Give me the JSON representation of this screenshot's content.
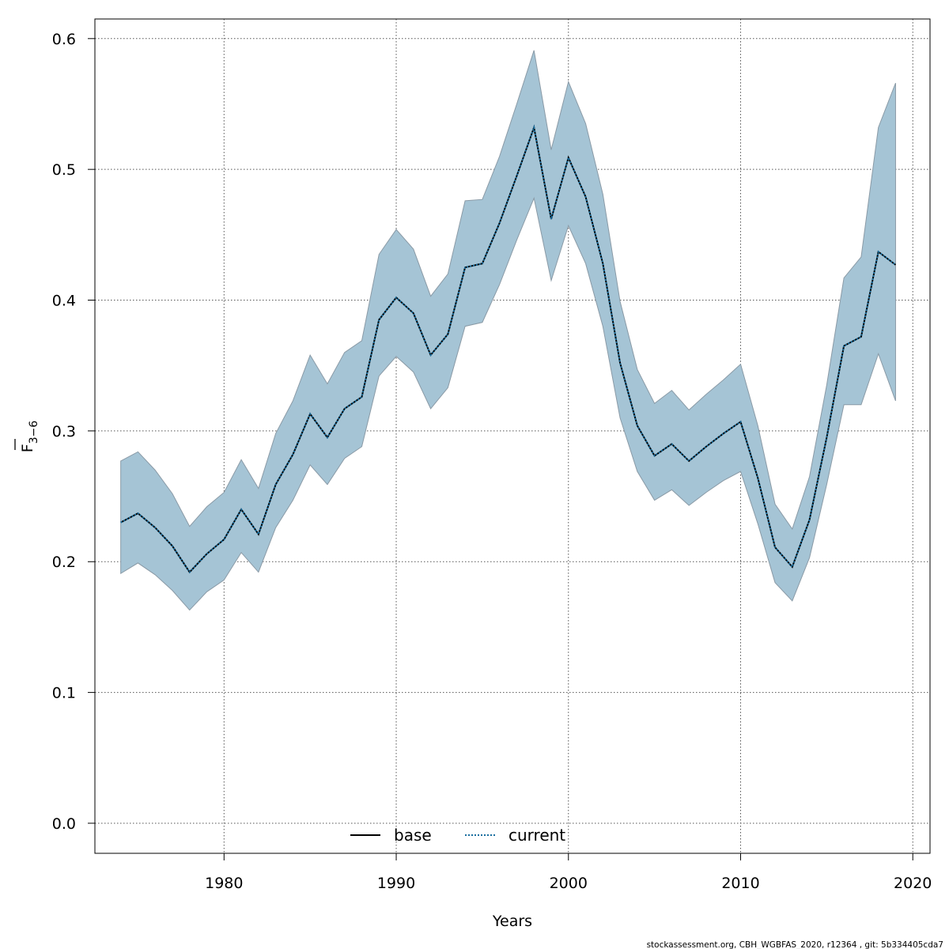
{
  "chart_data": {
    "type": "line",
    "xlabel": "Years",
    "ylabel_main": "F",
    "ylabel_sub": "3−6",
    "xlim": [
      1972.5,
      2021
    ],
    "ylim": [
      -0.023,
      0.615
    ],
    "xticks": [
      1980,
      1990,
      2000,
      2010,
      2020
    ],
    "yticks": [
      0.0,
      0.1,
      0.2,
      0.3,
      0.4,
      0.5,
      0.6
    ],
    "ytick_labels": [
      "0.0",
      "0.1",
      "0.2",
      "0.3",
      "0.4",
      "0.5",
      "0.6"
    ],
    "grid": true,
    "legend_position": "bottom-center",
    "x": [
      1974,
      1975,
      1976,
      1977,
      1978,
      1979,
      1980,
      1981,
      1982,
      1983,
      1984,
      1985,
      1986,
      1987,
      1988,
      1989,
      1990,
      1991,
      1992,
      1993,
      1994,
      1995,
      1996,
      1997,
      1998,
      1999,
      2000,
      2001,
      2002,
      2003,
      2004,
      2005,
      2006,
      2007,
      2008,
      2009,
      2010,
      2011,
      2012,
      2013,
      2014,
      2015,
      2016,
      2017,
      2018,
      2019
    ],
    "band": {
      "color": "#a5c4d5",
      "edge_color": "#8a9aa6",
      "lower": [
        0.191,
        0.199,
        0.19,
        0.178,
        0.163,
        0.177,
        0.186,
        0.207,
        0.192,
        0.226,
        0.247,
        0.274,
        0.259,
        0.279,
        0.288,
        0.342,
        0.357,
        0.345,
        0.317,
        0.333,
        0.38,
        0.383,
        0.412,
        0.446,
        0.478,
        0.415,
        0.457,
        0.428,
        0.38,
        0.31,
        0.269,
        0.247,
        0.255,
        0.243,
        0.253,
        0.262,
        0.269,
        0.229,
        0.184,
        0.17,
        0.203,
        0.259,
        0.32,
        0.32,
        0.359,
        0.323
      ],
      "upper": [
        0.277,
        0.284,
        0.27,
        0.252,
        0.227,
        0.242,
        0.253,
        0.278,
        0.256,
        0.298,
        0.323,
        0.358,
        0.336,
        0.36,
        0.369,
        0.435,
        0.454,
        0.439,
        0.403,
        0.42,
        0.476,
        0.477,
        0.51,
        0.55,
        0.591,
        0.515,
        0.567,
        0.535,
        0.481,
        0.399,
        0.347,
        0.321,
        0.331,
        0.316,
        0.328,
        0.339,
        0.351,
        0.304,
        0.244,
        0.225,
        0.265,
        0.335,
        0.417,
        0.433,
        0.532,
        0.566
      ]
    },
    "series": [
      {
        "name": "base",
        "color": "#000000",
        "dash": "solid",
        "values": [
          0.23,
          0.237,
          0.226,
          0.212,
          0.192,
          0.206,
          0.217,
          0.24,
          0.221,
          0.259,
          0.282,
          0.313,
          0.295,
          0.317,
          0.326,
          0.385,
          0.402,
          0.39,
          0.358,
          0.374,
          0.425,
          0.428,
          0.459,
          0.495,
          0.532,
          0.462,
          0.509,
          0.479,
          0.428,
          0.352,
          0.304,
          0.281,
          0.29,
          0.277,
          0.288,
          0.298,
          0.307,
          0.264,
          0.211,
          0.196,
          0.232,
          0.295,
          0.365,
          0.372,
          0.437,
          0.427
        ]
      },
      {
        "name": "current",
        "color": "#1a6fa0",
        "dash": "dotted",
        "values": [
          0.23,
          0.237,
          0.226,
          0.212,
          0.192,
          0.206,
          0.217,
          0.24,
          0.221,
          0.259,
          0.282,
          0.313,
          0.295,
          0.317,
          0.326,
          0.385,
          0.402,
          0.39,
          0.358,
          0.374,
          0.425,
          0.428,
          0.459,
          0.495,
          0.532,
          0.462,
          0.509,
          0.479,
          0.428,
          0.352,
          0.304,
          0.281,
          0.29,
          0.277,
          0.288,
          0.298,
          0.307,
          0.264,
          0.211,
          0.196,
          0.232,
          0.295,
          0.365,
          0.372,
          0.437,
          0.427
        ]
      }
    ]
  },
  "legend": {
    "base_label": "base",
    "current_label": "current"
  },
  "footer": {
    "text": "stockassessment.org, CBH_WGBFAS_2020, r12364 , git: 5b334405cda7"
  }
}
